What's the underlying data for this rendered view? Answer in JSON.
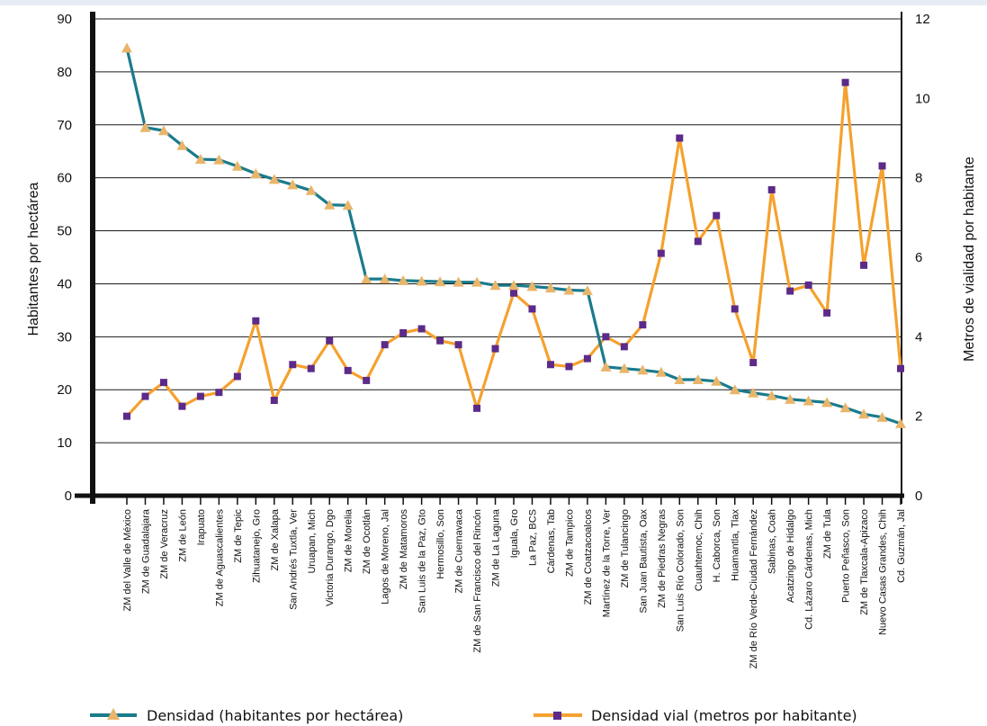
{
  "chart_data": {
    "type": "line",
    "ylabel": "Habitantes por hectárea",
    "y2label": "Metros de vialidad por habitante",
    "ylim": [
      0,
      90
    ],
    "y2lim": [
      0,
      12
    ],
    "yticks": [
      "0",
      "10",
      "20",
      "30",
      "40",
      "50",
      "60",
      "70",
      "80",
      "90"
    ],
    "y2ticks": [
      "0",
      "2",
      "4",
      "6",
      "8",
      "10",
      "12"
    ],
    "grid": true,
    "legend_position": "bottom",
    "categories": [
      "ZM del Valle de México",
      "ZM de Guadalajara",
      "ZM de Veracruz",
      "ZM de León",
      "Irapuato",
      "ZM de Aguascalientes",
      "ZM de Tepic",
      "Zihuatanejo, Gro",
      "ZM de Xalapa",
      "San Andrés Tuxtla, Ver",
      "Uruapan, Mich",
      "Victoria Durango, Dgo",
      "ZM de Morelia",
      "ZM de Ocotlán",
      "Lagos de Moreno, Jal",
      "ZM de Matamoros",
      "San Luis de la Paz, Gto",
      "Hermosillo, Son",
      "ZM de Cuernavaca",
      "ZM de San Francisco del Rincón",
      "ZM de La Laguna",
      "Iguala, Gro",
      "La Paz, BCS",
      "Cárdenas, Tab",
      "ZM de Tampico",
      "ZM de Coatzacoalcos",
      "Martínez de la Torre, Ver",
      "ZM de Tulancingo",
      "San Juan Bautista, Oax",
      "ZM de Piedras Negras",
      "San Luis Río Colorado, Son",
      "Cuauhtemoc, Chih",
      "H. Caborca, Son",
      "Huamantla, Tlax",
      "ZM de Río Verde-Ciudad Fernández",
      "Sabinas, Coah",
      "Acatzingo de Hidalgo",
      "Cd. Lázaro Cárdenas, Mich",
      "ZM de Tula",
      "Puerto Peñasco, Son",
      "ZM de Tlaxcala-Apizaco",
      "Nuevo Casas Grandes, Chih",
      "Cd. Guzmán, Jal"
    ],
    "series": [
      {
        "name": "Densidad (habitantes por hectárea)",
        "axis": "left",
        "color": "#1a7b8c",
        "marker": "triangle",
        "marker_color": "#e9b56a",
        "values": [
          84.5,
          69.5,
          68.9,
          66.1,
          63.5,
          63.4,
          62.2,
          60.8,
          59.7,
          58.7,
          57.6,
          54.9,
          54.8,
          40.9,
          40.9,
          40.6,
          40.5,
          40.4,
          40.3,
          40.3,
          39.7,
          39.7,
          39.5,
          39.2,
          38.8,
          38.7,
          24.3,
          24.0,
          23.7,
          23.3,
          21.9,
          21.9,
          21.6,
          20.0,
          19.4,
          18.9,
          18.2,
          17.9,
          17.6,
          16.6,
          15.4,
          14.8,
          13.6
        ]
      },
      {
        "name": "Densidad vial (metros por habitante)",
        "axis": "right",
        "color": "#f5a12e",
        "marker": "square",
        "marker_color": "#5c2a8a",
        "values": [
          2.0,
          2.5,
          2.85,
          2.25,
          2.5,
          2.6,
          3.0,
          4.4,
          2.4,
          3.3,
          3.2,
          3.9,
          3.15,
          2.9,
          3.8,
          4.1,
          4.2,
          3.9,
          3.8,
          2.2,
          3.7,
          5.1,
          4.7,
          3.3,
          3.25,
          3.45,
          4.0,
          3.75,
          4.3,
          6.1,
          9.0,
          6.4,
          7.05,
          4.7,
          3.35,
          7.7,
          5.15,
          5.3,
          4.6,
          10.4,
          5.8,
          8.3,
          3.2
        ]
      }
    ]
  }
}
